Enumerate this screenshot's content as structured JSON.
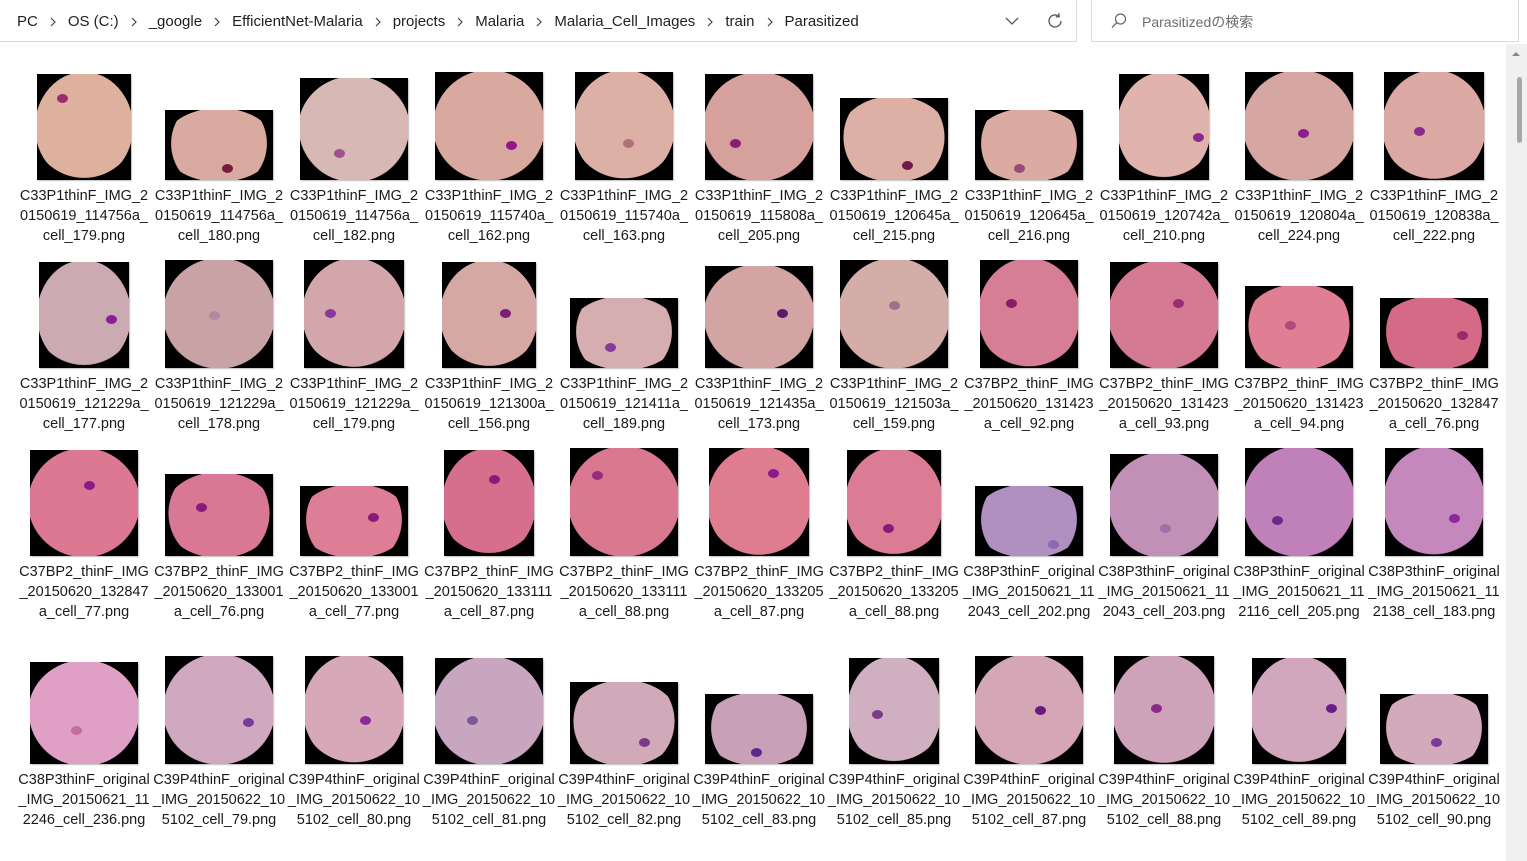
{
  "address_bar": {
    "crumbs": [
      "PC",
      "OS (C:)",
      "_google",
      "EfficientNet-Malaria",
      "projects",
      "Malaria",
      "Malaria_Cell_Images",
      "train",
      "Parasitized"
    ],
    "dropdown_icon": "chevron-down-icon",
    "refresh_icon": "refresh-icon"
  },
  "search": {
    "placeholder": "Parasitizedの検索",
    "icon": "search-icon"
  },
  "files": [
    {
      "name": "C33P1thinF_IMG_20150619_114756a_cell_179.png",
      "cell": "#deb09e",
      "parasite": "#9b2a6e"
    },
    {
      "name": "C33P1thinF_IMG_20150619_114756a_cell_180.png",
      "cell": "#d9aaa0",
      "parasite": "#7a1b3e"
    },
    {
      "name": "C33P1thinF_IMG_20150619_114756a_cell_182.png",
      "cell": "#d8b8b4",
      "parasite": "#a0508a"
    },
    {
      "name": "C33P1thinF_IMG_20150619_115740a_cell_162.png",
      "cell": "#d9a89e",
      "parasite": "#8e1a8a"
    },
    {
      "name": "C33P1thinF_IMG_20150619_115740a_cell_163.png",
      "cell": "#ddb0a6",
      "parasite": "#b0707a"
    },
    {
      "name": "C33P1thinF_IMG_20150619_115808a_cell_205.png",
      "cell": "#d6a09c",
      "parasite": "#8a1e6e"
    },
    {
      "name": "C33P1thinF_IMG_20150619_120645a_cell_215.png",
      "cell": "#dcb0a4",
      "parasite": "#6e1a4a"
    },
    {
      "name": "C33P1thinF_IMG_20150619_120645a_cell_216.png",
      "cell": "#dbaaa0",
      "parasite": "#9a4a7a"
    },
    {
      "name": "C33P1thinF_IMG_20150619_120742a_cell_210.png",
      "cell": "#e0b4ac",
      "parasite": "#8a2a8a"
    },
    {
      "name": "C33P1thinF_IMG_20150619_120804a_cell_224.png",
      "cell": "#d6a6a2",
      "parasite": "#8a1e8a"
    },
    {
      "name": "C33P1thinF_IMG_20150619_120838a_cell_222.png",
      "cell": "#dba8a4",
      "parasite": "#8a2a8a"
    },
    {
      "name": "C33P1thinF_IMG_20150619_121229a_cell_177.png",
      "cell": "#ccaab2",
      "parasite": "#8a1e9a"
    },
    {
      "name": "C33P1thinF_IMG_20150619_121229a_cell_178.png",
      "cell": "#c9a2a6",
      "parasite": "#b08aa0"
    },
    {
      "name": "C33P1thinF_IMG_20150619_121229a_cell_179.png",
      "cell": "#d2a6aa",
      "parasite": "#8a3a9a"
    },
    {
      "name": "C33P1thinF_IMG_20150619_121300a_cell_156.png",
      "cell": "#d6a8a4",
      "parasite": "#7a1e7a"
    },
    {
      "name": "C33P1thinF_IMG_20150619_121411a_cell_189.png",
      "cell": "#d6aeb2",
      "parasite": "#8a3a9a"
    },
    {
      "name": "C33P1thinF_IMG_20150619_121435a_cell_173.png",
      "cell": "#d2a4a4",
      "parasite": "#5e1a6a"
    },
    {
      "name": "C33P1thinF_IMG_20150619_121503a_cell_159.png",
      "cell": "#d4aca8",
      "parasite": "#a07090"
    },
    {
      "name": "C37BP2_thinF_IMG_20150620_131423a_cell_92.png",
      "cell": "#d67e96",
      "parasite": "#8a1a6a"
    },
    {
      "name": "C37BP2_thinF_IMG_20150620_131423a_cell_93.png",
      "cell": "#d47a92",
      "parasite": "#9a2a7a"
    },
    {
      "name": "C37BP2_thinF_IMG_20150620_131423a_cell_94.png",
      "cell": "#e07e94",
      "parasite": "#b04a7a"
    },
    {
      "name": "C37BP2_thinF_IMG_20150620_132847a_cell_76.png",
      "cell": "#d46a86",
      "parasite": "#9a2a6a"
    },
    {
      "name": "C37BP2_thinF_IMG_20150620_132847a_cell_77.png",
      "cell": "#dc7892",
      "parasite": "#8a1a8a"
    },
    {
      "name": "C37BP2_thinF_IMG_20150620_133001a_cell_76.png",
      "cell": "#d87894",
      "parasite": "#8a1a7a"
    },
    {
      "name": "C37BP2_thinF_IMG_20150620_133001a_cell_77.png",
      "cell": "#de7e96",
      "parasite": "#8a1a7a"
    },
    {
      "name": "C37BP2_thinF_IMG_20150620_133111a_cell_87.png",
      "cell": "#d66e8e",
      "parasite": "#8a1a7a"
    },
    {
      "name": "C37BP2_thinF_IMG_20150620_133111a_cell_88.png",
      "cell": "#da7890",
      "parasite": "#9a2a7a"
    },
    {
      "name": "C37BP2_thinF_IMG_20150620_133205a_cell_87.png",
      "cell": "#de7c90",
      "parasite": "#8a1a8a"
    },
    {
      "name": "C37BP2_thinF_IMG_20150620_133205a_cell_88.png",
      "cell": "#dc7c94",
      "parasite": "#8a1a7a"
    },
    {
      "name": "C38P3thinF_original_IMG_20150621_112043_cell_202.png",
      "cell": "#b090c0",
      "parasite": "#8a6ab0"
    },
    {
      "name": "C38P3thinF_original_IMG_20150621_112043_cell_203.png",
      "cell": "#c090b6",
      "parasite": "#a070a8"
    },
    {
      "name": "C38P3thinF_original_IMG_20150621_112116_cell_205.png",
      "cell": "#c080ba",
      "parasite": "#6a2a8a"
    },
    {
      "name": "C38P3thinF_original_IMG_20150621_112138_cell_183.png",
      "cell": "#c488bc",
      "parasite": "#8a2a9a"
    },
    {
      "name": "C38P3thinF_original_IMG_20150621_112246_cell_236.png",
      "cell": "#e0a0c6",
      "parasite": "#c070a0"
    },
    {
      "name": "C39P4thinF_original_IMG_20150622_105102_cell_79.png",
      "cell": "#d0a8c0",
      "parasite": "#7a3a9a"
    },
    {
      "name": "C39P4thinF_original_IMG_20150622_105102_cell_80.png",
      "cell": "#d6a8b8",
      "parasite": "#8a2a9a"
    },
    {
      "name": "C39P4thinF_original_IMG_20150622_105102_cell_81.png",
      "cell": "#c8a6c0",
      "parasite": "#7a5a9a"
    },
    {
      "name": "C39P4thinF_original_IMG_20150622_105102_cell_82.png",
      "cell": "#d0aab8",
      "parasite": "#7a3a8a"
    },
    {
      "name": "C39P4thinF_original_IMG_20150622_105102_cell_83.png",
      "cell": "#c8a0b8",
      "parasite": "#5a2a8a"
    },
    {
      "name": "C39P4thinF_original_IMG_20150622_105102_cell_85.png",
      "cell": "#d0b0c0",
      "parasite": "#7a3a8a"
    },
    {
      "name": "C39P4thinF_original_IMG_20150622_105102_cell_87.png",
      "cell": "#d4a6b6",
      "parasite": "#6a1a7a"
    },
    {
      "name": "C39P4thinF_original_IMG_20150622_105102_cell_88.png",
      "cell": "#cea2b8",
      "parasite": "#8a2a8a"
    },
    {
      "name": "C39P4thinF_original_IMG_20150622_105102_cell_89.png",
      "cell": "#d2a6bc",
      "parasite": "#6a1a8a"
    },
    {
      "name": "C39P4thinF_original_IMG_20150622_105102_cell_90.png",
      "cell": "#d2aabc",
      "parasite": "#7a3a9a"
    }
  ]
}
